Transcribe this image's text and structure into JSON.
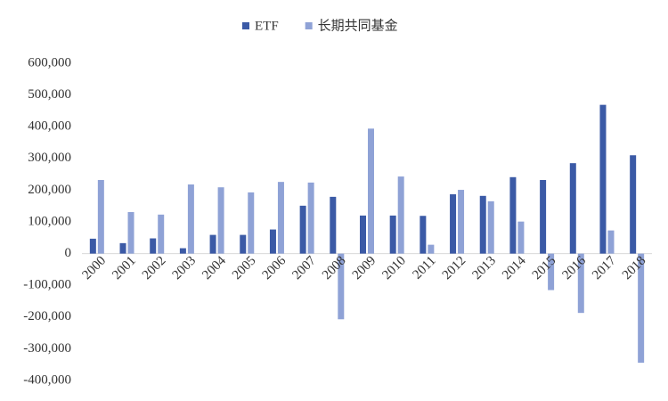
{
  "chart_data": {
    "type": "bar",
    "categories": [
      "2000",
      "2001",
      "2002",
      "2003",
      "2004",
      "2005",
      "2006",
      "2007",
      "2008",
      "2009",
      "2010",
      "2011",
      "2012",
      "2013",
      "2014",
      "2015",
      "2016",
      "2017",
      "2018"
    ],
    "series": [
      {
        "name": "ETF",
        "color": "#3b5aa6",
        "values": [
          47000,
          33000,
          48000,
          17000,
          59000,
          59000,
          76000,
          151000,
          179000,
          120000,
          120000,
          119000,
          187000,
          182000,
          241000,
          232000,
          285000,
          469000,
          310000
        ]
      },
      {
        "name": "长期共同基金",
        "color": "#8fa2d6",
        "values": [
          232000,
          131000,
          123000,
          218000,
          209000,
          193000,
          226000,
          224000,
          -207000,
          394000,
          243000,
          28000,
          201000,
          165000,
          101000,
          -115000,
          -187000,
          73000,
          -344000
        ]
      }
    ],
    "ylim": [
      -400000,
      600000
    ],
    "yticks": [
      {
        "value": -400000,
        "label": "-400,000"
      },
      {
        "value": -300000,
        "label": "-300,000"
      },
      {
        "value": -200000,
        "label": "-200,000"
      },
      {
        "value": -100000,
        "label": "-100,000"
      },
      0,
      {
        "value": 100000,
        "label": "100,000"
      },
      {
        "value": 200000,
        "label": "200,000"
      },
      {
        "value": 300000,
        "label": "300,000"
      },
      {
        "value": 400000,
        "label": "400,000"
      },
      {
        "value": 500000,
        "label": "500,000"
      },
      {
        "value": 600000,
        "label": "600,000"
      }
    ],
    "grid": false,
    "legend": "top"
  }
}
